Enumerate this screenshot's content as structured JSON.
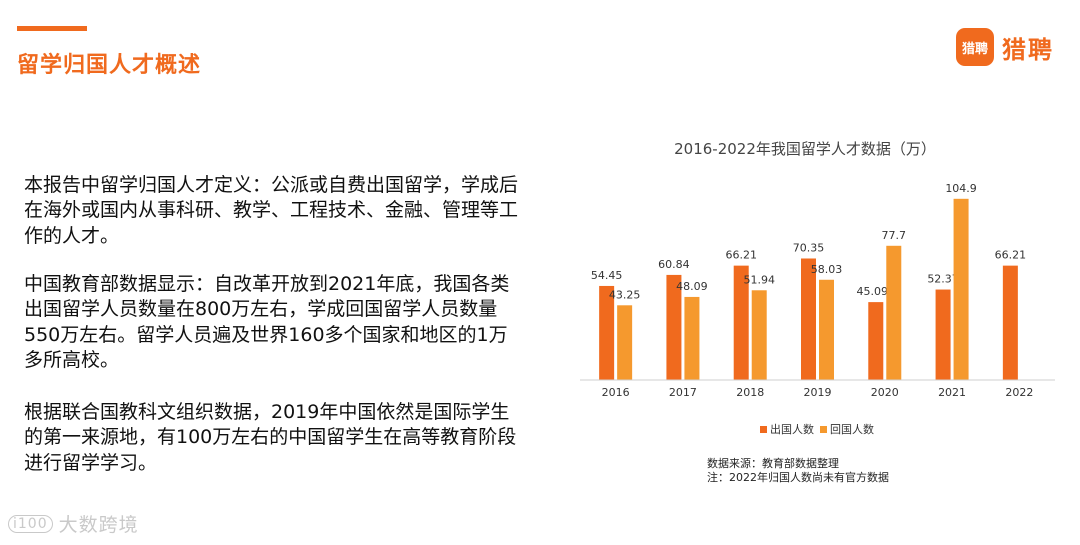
{
  "header": {
    "title": "留学归国人才概述",
    "logo_badge": "猎聘",
    "logo_text": "猎聘"
  },
  "paragraphs": [
    "本报告中留学归国人才定义：公派或自费出国留学，学成后在海外或国内从事科研、教学、工程技术、金融、管理等工作的人才。",
    "中国教育部数据显示：自改革开放到2021年底，我国各类出国留学人员数量在800万左右，学成回国留学人员数量550万左右。留学人员遍及世界160多个国家和地区的1万多所高校。",
    "根据联合国教科文组织数据，2019年中国依然是国际学生的第一来源地，有100万左右的中国留学生在高等教育阶段进行留学学习。"
  ],
  "chart_data": {
    "type": "bar",
    "title": "2016-2022年我国留学人才数据（万）",
    "categories": [
      "2016",
      "2017",
      "2018",
      "2019",
      "2020",
      "2021",
      "2022"
    ],
    "series": [
      {
        "name": "出国人数",
        "color": "#f06a1e",
        "values": [
          54.45,
          60.84,
          66.21,
          70.35,
          45.091,
          52.37,
          66.21
        ],
        "labels": [
          "54.45",
          "60.84",
          "66.21",
          "70.35",
          "45.091",
          "52.37",
          "66.21"
        ]
      },
      {
        "name": "回国人数",
        "color": "#f5992e",
        "values": [
          43.25,
          48.09,
          51.94,
          58.03,
          77.7,
          104.9,
          null
        ],
        "labels": [
          "43.25",
          "48.09",
          "51.94",
          "58.03",
          "77.7",
          "104.9",
          null
        ]
      }
    ],
    "ylim": [
      0,
      110
    ],
    "legend": "bottom-center"
  },
  "notes": {
    "source": "数据来源：教育部数据整理",
    "remark": "注：2022年归国人数尚未有官方数据"
  },
  "watermark": {
    "icon": "i100",
    "text": "大数跨境"
  }
}
